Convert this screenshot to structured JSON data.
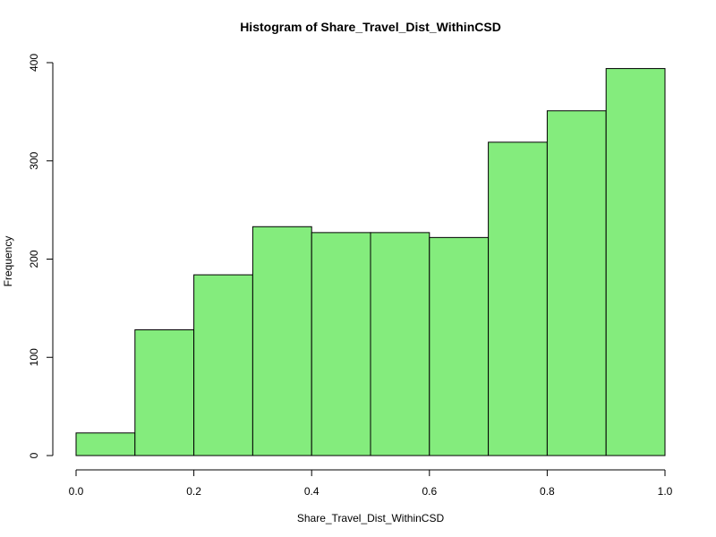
{
  "chart_data": {
    "type": "bar",
    "title": "Histogram of Share_Travel_Dist_WithinCSD",
    "xlabel": "Share_Travel_Dist_WithinCSD",
    "ylabel": "Frequency",
    "bin_edges": [
      0.0,
      0.1,
      0.2,
      0.3,
      0.4,
      0.5,
      0.6,
      0.7,
      0.8,
      0.9,
      1.0
    ],
    "values": [
      23,
      128,
      184,
      233,
      227,
      227,
      222,
      319,
      351,
      394
    ],
    "xlim": [
      0.0,
      1.0
    ],
    "ylim": [
      0,
      400
    ],
    "xticks": [
      "0.0",
      "0.2",
      "0.4",
      "0.6",
      "0.8",
      "1.0"
    ],
    "xtick_values": [
      0.0,
      0.2,
      0.4,
      0.6,
      0.8,
      1.0
    ],
    "yticks": [
      "0",
      "100",
      "200",
      "300",
      "400"
    ],
    "ytick_values": [
      0,
      100,
      200,
      300,
      400
    ],
    "bar_color": "#84ec7d",
    "grid": false
  }
}
